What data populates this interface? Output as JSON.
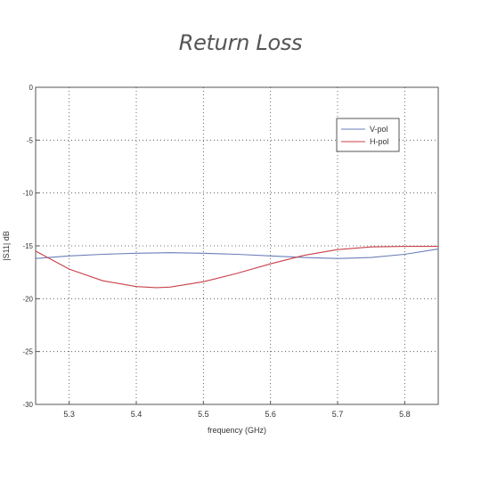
{
  "page": {
    "title": "Return Loss"
  },
  "chart_data": {
    "type": "line",
    "title": "",
    "xlabel": "frequency (GHz)",
    "ylabel": "|S11| dB",
    "xlim": [
      5.25,
      5.85
    ],
    "ylim": [
      -30,
      0
    ],
    "xticks": [
      5.3,
      5.4,
      5.5,
      5.6,
      5.7,
      5.8
    ],
    "yticks": [
      0,
      -5,
      -10,
      -15,
      -20,
      -25,
      -30
    ],
    "grid": true,
    "legend_position": "top-right",
    "series": [
      {
        "name": "V-pol",
        "color": "#6a7fb8",
        "x": [
          5.25,
          5.3,
          5.35,
          5.4,
          5.45,
          5.5,
          5.55,
          5.6,
          5.65,
          5.7,
          5.75,
          5.8,
          5.85
        ],
        "y": [
          -16.2,
          -15.95,
          -15.8,
          -15.7,
          -15.65,
          -15.7,
          -15.8,
          -15.95,
          -16.1,
          -16.2,
          -16.1,
          -15.8,
          -15.3
        ]
      },
      {
        "name": "H-pol",
        "color": "#c8404a",
        "x": [
          5.25,
          5.3,
          5.35,
          5.4,
          5.43,
          5.45,
          5.5,
          5.55,
          5.6,
          5.65,
          5.7,
          5.75,
          5.8,
          5.85
        ],
        "y": [
          -15.5,
          -17.2,
          -18.3,
          -18.85,
          -18.95,
          -18.9,
          -18.4,
          -17.6,
          -16.7,
          -15.9,
          -15.35,
          -15.1,
          -15.05,
          -15.05
        ]
      }
    ]
  }
}
